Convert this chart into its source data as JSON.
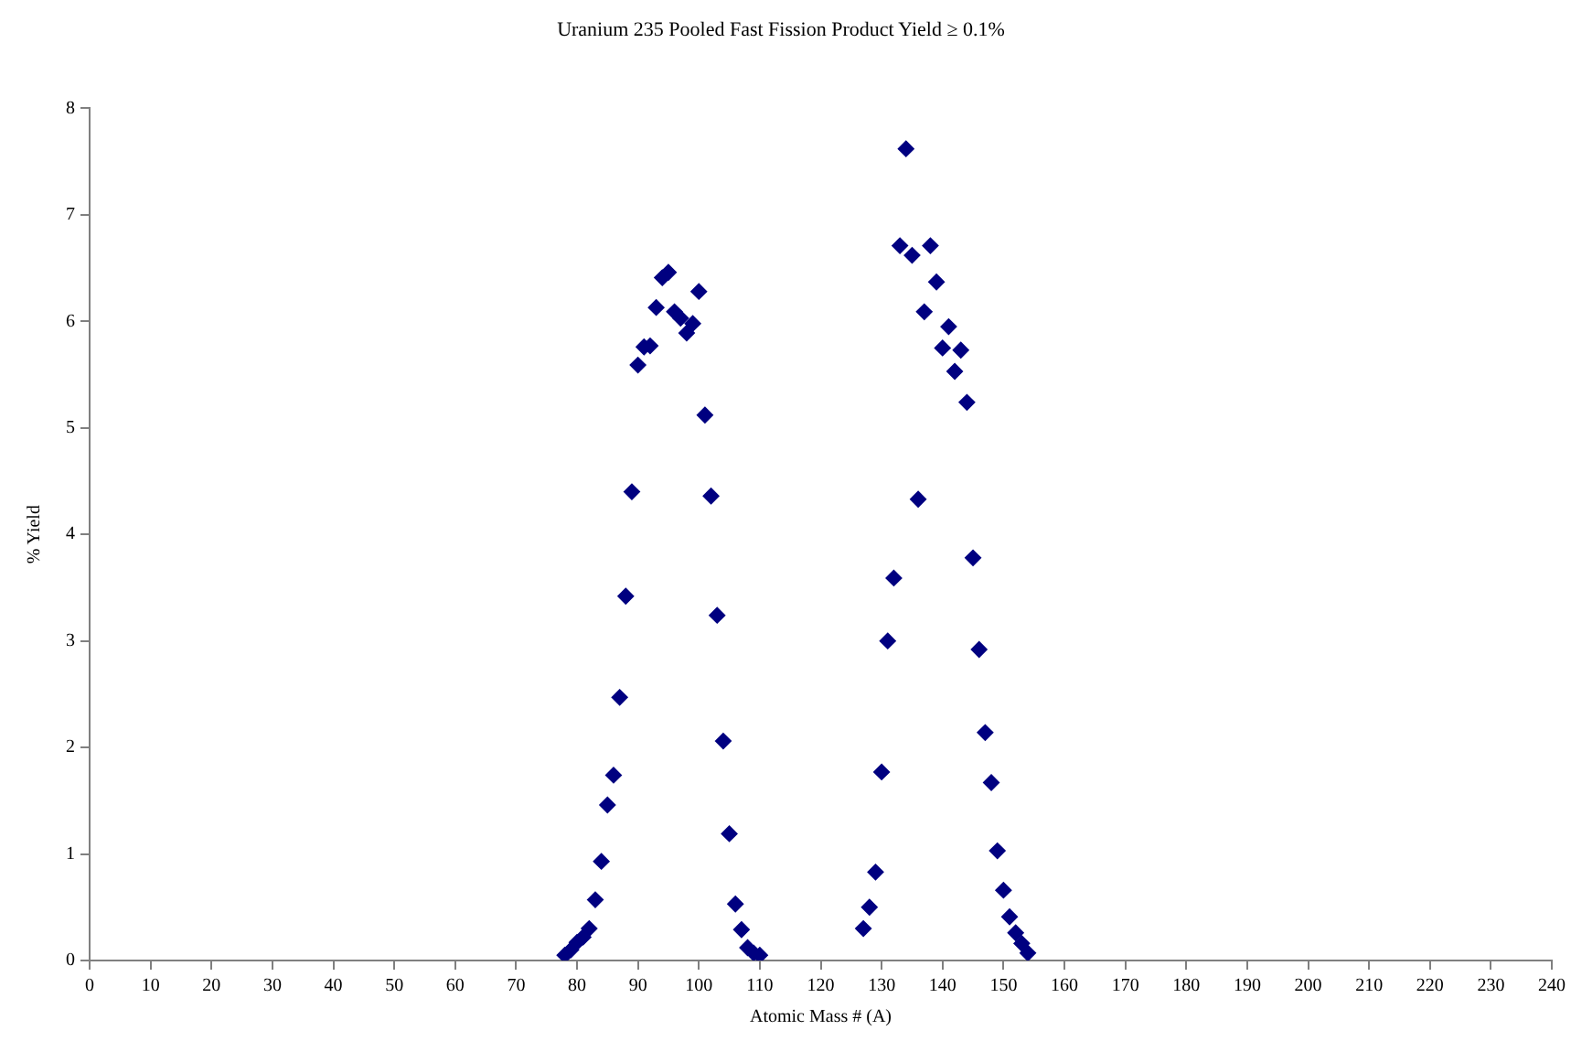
{
  "chart_data": {
    "type": "scatter",
    "title": "Uranium 235 Pooled Fast Fission Product Yield ≥ 0.1%",
    "xlabel": "Atomic Mass # (A)",
    "ylabel": "% Yield",
    "x": [
      78,
      79,
      80,
      81,
      82,
      83,
      84,
      85,
      86,
      87,
      88,
      89,
      90,
      91,
      92,
      93,
      94,
      95,
      96,
      97,
      98,
      99,
      100,
      101,
      102,
      103,
      104,
      105,
      106,
      107,
      108,
      109,
      110,
      127,
      128,
      129,
      130,
      131,
      132,
      133,
      134,
      135,
      136,
      137,
      138,
      139,
      140,
      141,
      142,
      143,
      144,
      145,
      146,
      147,
      148,
      149,
      150,
      151,
      152,
      153,
      154
    ],
    "series": [
      {
        "color": "#000080",
        "values": [
          0.05,
          0.1,
          0.17,
          0.22,
          0.3,
          0.57,
          0.93,
          1.46,
          1.74,
          2.47,
          3.42,
          4.4,
          5.59,
          5.76,
          5.77,
          6.13,
          6.41,
          6.46,
          6.09,
          6.03,
          5.89,
          5.98,
          6.28,
          5.12,
          4.36,
          3.24,
          2.06,
          1.19,
          0.53,
          0.29,
          0.12,
          0.07,
          0.05,
          0.3,
          0.5,
          0.83,
          1.77,
          3.0,
          3.59,
          6.71,
          7.62,
          6.62,
          4.33,
          6.09,
          6.71,
          6.37,
          5.75,
          5.95,
          5.53,
          5.73,
          5.24,
          3.78,
          2.92,
          2.14,
          1.67,
          1.03,
          0.66,
          0.41,
          0.26,
          0.16,
          0.07
        ]
      }
    ],
    "xlim": [
      0,
      240
    ],
    "xticks": [
      0,
      10,
      20,
      30,
      40,
      50,
      60,
      70,
      80,
      90,
      100,
      110,
      120,
      130,
      140,
      150,
      160,
      170,
      180,
      190,
      200,
      210,
      220,
      230,
      240
    ],
    "ylim": [
      0,
      8
    ],
    "yticks": [
      0,
      1,
      2,
      3,
      4,
      5,
      6,
      7,
      8
    ],
    "grid": false,
    "legend": false,
    "marker": "diamond"
  }
}
